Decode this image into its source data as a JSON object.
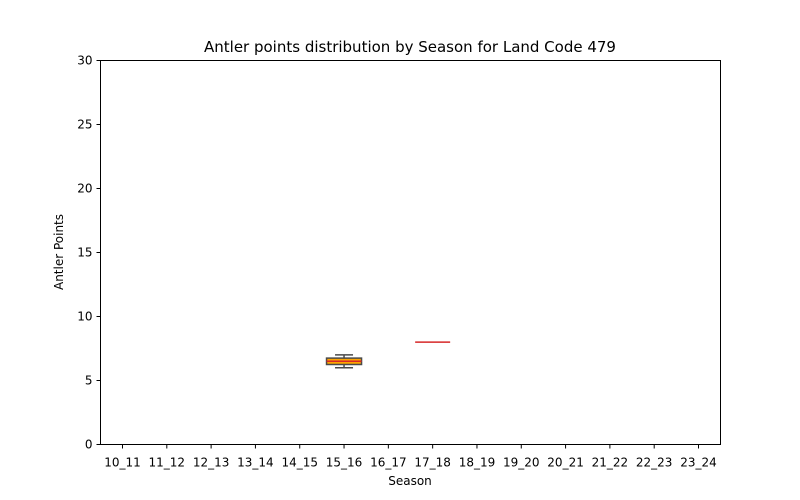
{
  "chart_data": {
    "type": "box",
    "title": "Antler points distribution by Season for Land Code 479",
    "xlabel": "Season",
    "ylabel": "Antler Points",
    "ylim": [
      0,
      30
    ],
    "yticks": [
      "0",
      "5",
      "10",
      "15",
      "20",
      "25",
      "30"
    ],
    "categories": [
      "10_11",
      "11_12",
      "12_13",
      "13_14",
      "14_15",
      "15_16",
      "16_17",
      "17_18",
      "18_19",
      "19_20",
      "20_21",
      "21_22",
      "22_23",
      "23_24"
    ],
    "boxes": [
      {
        "category": "15_16",
        "min": 6,
        "q1": 6.25,
        "median": 6.5,
        "q3": 6.75,
        "max": 7
      },
      {
        "category": "17_18",
        "min": 8,
        "q1": 8,
        "median": 8,
        "q3": 8,
        "max": 8
      }
    ],
    "grid": false,
    "colors": {
      "box_fill": "#FFA500",
      "box_edge": "#4a4a4a",
      "median": "#d62728",
      "axis": "#000000"
    }
  }
}
